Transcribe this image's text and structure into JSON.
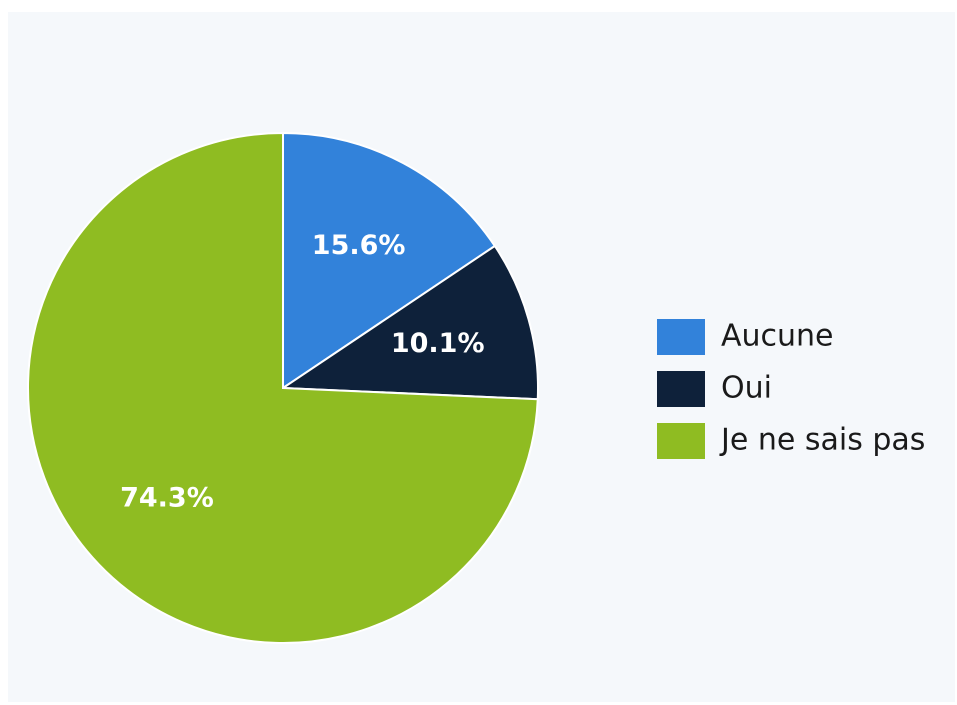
{
  "chart_data": {
    "type": "pie",
    "categories": [
      "Aucune",
      "Oui",
      "Je ne sais pas"
    ],
    "values": [
      15.6,
      10.1,
      74.3
    ],
    "value_labels": [
      "15.6%",
      "10.1%",
      "74.3%"
    ],
    "colors": [
      "#3282da",
      "#0e213a",
      "#8fbc22"
    ],
    "legend": "right"
  }
}
